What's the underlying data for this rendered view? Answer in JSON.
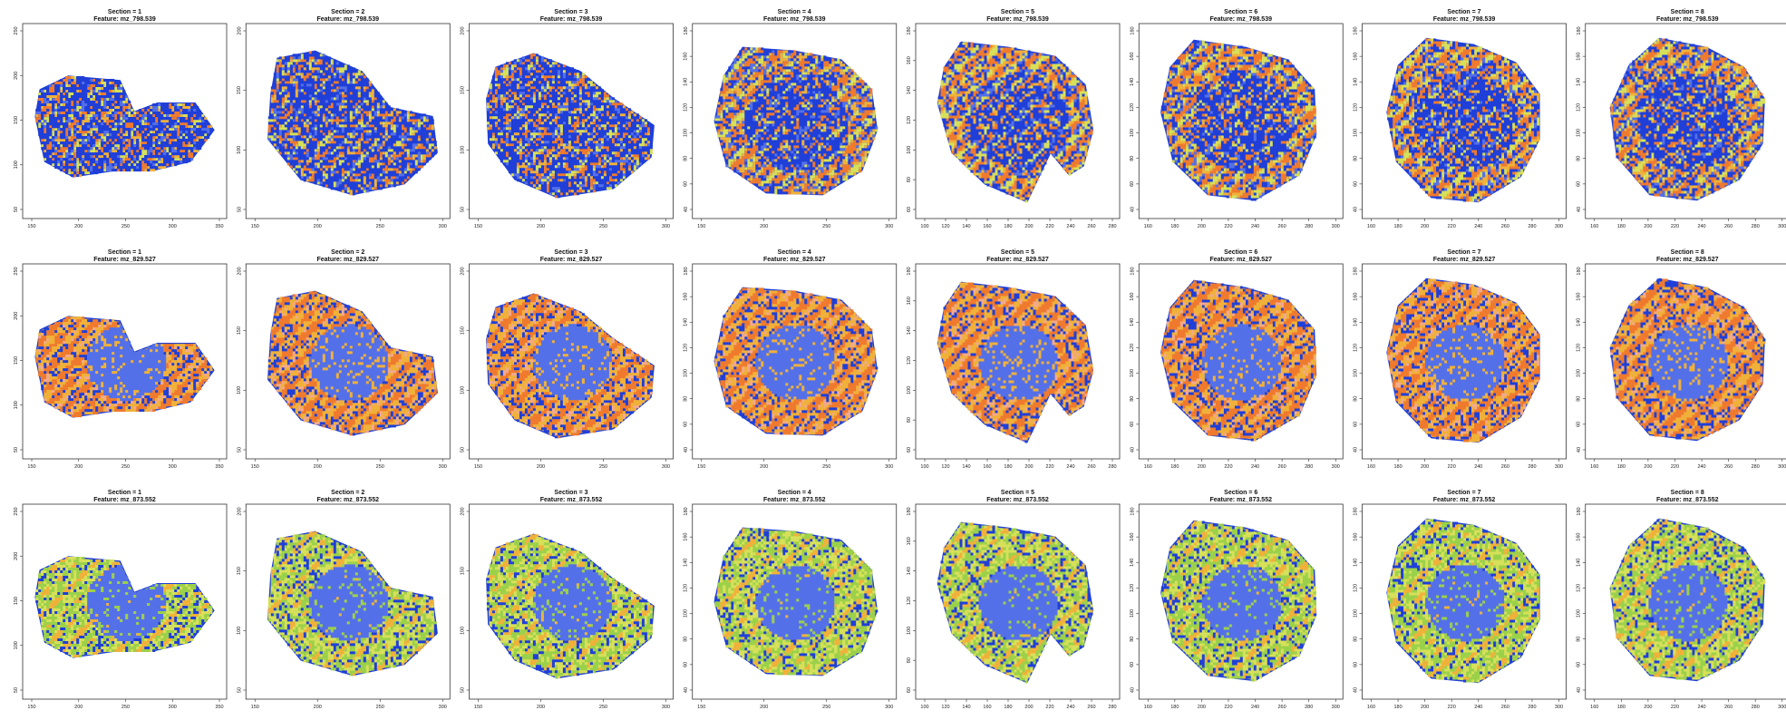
{
  "chart_data": {
    "type": "heatmap",
    "layout": {
      "rows": 3,
      "cols": 8
    },
    "colors": [
      "#1f3fd8",
      "#5470e8",
      "#9bd14a",
      "#d7e05a",
      "#f0b13a",
      "#ef7a2e",
      "#f2a98f"
    ],
    "features": [
      "mz_798.539",
      "mz_829.527",
      "mz_873.552"
    ],
    "sections": [
      {
        "label": "1",
        "xlim": [
          150,
          370
        ],
        "ylim": [
          90,
          330
        ],
        "xticks": [
          "150",
          "200",
          "250",
          "300",
          "350"
        ],
        "yticks": [
          "50",
          "100",
          "150",
          "200",
          "250"
        ],
        "shape": [
          [
            -0.95,
            0.05
          ],
          [
            -0.85,
            -0.45
          ],
          [
            -0.55,
            -0.62
          ],
          [
            -0.1,
            -0.55
          ],
          [
            0.3,
            -0.55
          ],
          [
            0.7,
            -0.45
          ],
          [
            0.95,
            -0.1
          ],
          [
            0.75,
            0.2
          ],
          [
            0.35,
            0.2
          ],
          [
            0.1,
            0.1
          ],
          [
            -0.05,
            0.45
          ],
          [
            -0.6,
            0.5
          ],
          [
            -0.9,
            0.35
          ]
        ]
      },
      {
        "label": "2",
        "xlim": [
          130,
          340
        ],
        "ylim": [
          40,
          260
        ],
        "xticks": [
          "150",
          "200",
          "250",
          "300"
        ],
        "yticks": [
          "50",
          "100",
          "150",
          "200"
        ],
        "shape": [
          [
            -0.75,
            0.7
          ],
          [
            -0.35,
            0.78
          ],
          [
            0.15,
            0.55
          ],
          [
            0.45,
            0.15
          ],
          [
            0.9,
            0.05
          ],
          [
            0.95,
            -0.35
          ],
          [
            0.6,
            -0.7
          ],
          [
            0.05,
            -0.82
          ],
          [
            -0.5,
            -0.65
          ],
          [
            -0.85,
            -0.2
          ],
          [
            -0.82,
            0.3
          ]
        ]
      },
      {
        "label": "3",
        "xlim": [
          140,
          330
        ],
        "ylim": [
          40,
          210
        ],
        "xticks": [
          "150",
          "200",
          "250",
          "300"
        ],
        "yticks": [
          "50",
          "100",
          "150",
          "200"
        ],
        "shape": [
          [
            -0.8,
            0.6
          ],
          [
            -0.4,
            0.75
          ],
          [
            0.1,
            0.55
          ],
          [
            0.45,
            0.25
          ],
          [
            0.88,
            -0.05
          ],
          [
            0.85,
            -0.4
          ],
          [
            0.45,
            -0.75
          ],
          [
            -0.15,
            -0.85
          ],
          [
            -0.6,
            -0.65
          ],
          [
            -0.88,
            -0.25
          ],
          [
            -0.9,
            0.25
          ]
        ]
      },
      {
        "label": "4",
        "xlim": [
          150,
          300
        ],
        "ylim": [
          40,
          180
        ],
        "xticks": [
          "150",
          "200",
          "250",
          "300"
        ],
        "yticks": [
          "40",
          "60",
          "80",
          "100",
          "120",
          "140",
          "160",
          "180"
        ],
        "shape": [
          [
            -0.55,
            0.82
          ],
          [
            0.0,
            0.78
          ],
          [
            0.5,
            0.68
          ],
          [
            0.82,
            0.35
          ],
          [
            0.88,
            -0.1
          ],
          [
            0.72,
            -0.55
          ],
          [
            0.3,
            -0.82
          ],
          [
            -0.3,
            -0.8
          ],
          [
            -0.72,
            -0.5
          ],
          [
            -0.85,
            0.0
          ],
          [
            -0.75,
            0.5
          ]
        ]
      },
      {
        "label": "5",
        "xlim": [
          90,
          290
        ],
        "ylim": [
          40,
          200
        ],
        "xticks": [
          "100",
          "120",
          "140",
          "160",
          "180",
          "200",
          "220",
          "240",
          "260",
          "280"
        ],
        "yticks": [
          "60",
          "80",
          "100",
          "120",
          "140",
          "160",
          "180"
        ],
        "shape": [
          [
            -0.6,
            0.88
          ],
          [
            -0.1,
            0.82
          ],
          [
            0.4,
            0.72
          ],
          [
            0.72,
            0.4
          ],
          [
            0.8,
            -0.1
          ],
          [
            0.7,
            -0.5
          ],
          [
            0.55,
            -0.6
          ],
          [
            0.35,
            -0.35
          ],
          [
            0.1,
            -0.9
          ],
          [
            -0.35,
            -0.7
          ],
          [
            -0.7,
            -0.35
          ],
          [
            -0.85,
            0.2
          ],
          [
            -0.78,
            0.6
          ]
        ]
      },
      {
        "label": "6",
        "xlim": [
          140,
          300
        ],
        "ylim": [
          40,
          200
        ],
        "xticks": [
          "160",
          "180",
          "200",
          "220",
          "240",
          "260",
          "280",
          "300"
        ],
        "yticks": [
          "40",
          "60",
          "80",
          "100",
          "120",
          "140",
          "160",
          "180"
        ],
        "shape": [
          [
            -0.5,
            0.9
          ],
          [
            0.05,
            0.82
          ],
          [
            0.5,
            0.68
          ],
          [
            0.78,
            0.35
          ],
          [
            0.8,
            -0.15
          ],
          [
            0.62,
            -0.6
          ],
          [
            0.15,
            -0.88
          ],
          [
            -0.35,
            -0.82
          ],
          [
            -0.72,
            -0.45
          ],
          [
            -0.85,
            0.1
          ],
          [
            -0.75,
            0.6
          ]
        ]
      },
      {
        "label": "7",
        "xlim": [
          140,
          300
        ],
        "ylim": [
          40,
          200
        ],
        "xticks": [
          "160",
          "180",
          "200",
          "220",
          "240",
          "260",
          "280",
          "300"
        ],
        "yticks": [
          "40",
          "60",
          "80",
          "100",
          "120",
          "140",
          "160",
          "180"
        ],
        "shape": [
          [
            -0.4,
            0.92
          ],
          [
            0.1,
            0.85
          ],
          [
            0.55,
            0.65
          ],
          [
            0.8,
            0.3
          ],
          [
            0.8,
            -0.2
          ],
          [
            0.6,
            -0.62
          ],
          [
            0.15,
            -0.9
          ],
          [
            -0.35,
            -0.85
          ],
          [
            -0.72,
            -0.45
          ],
          [
            -0.82,
            0.1
          ],
          [
            -0.7,
            0.62
          ]
        ]
      },
      {
        "label": "8",
        "xlim": [
          140,
          300
        ],
        "ylim": [
          40,
          200
        ],
        "xticks": [
          "160",
          "180",
          "200",
          "220",
          "240",
          "260",
          "280",
          "300"
        ],
        "yticks": [
          "40",
          "60",
          "80",
          "100",
          "120",
          "140",
          "160",
          "180"
        ],
        "shape": [
          [
            -0.3,
            0.92
          ],
          [
            0.2,
            0.82
          ],
          [
            0.6,
            0.6
          ],
          [
            0.82,
            0.25
          ],
          [
            0.8,
            -0.25
          ],
          [
            0.55,
            -0.65
          ],
          [
            0.1,
            -0.88
          ],
          [
            -0.4,
            -0.82
          ],
          [
            -0.75,
            -0.4
          ],
          [
            -0.82,
            0.15
          ],
          [
            -0.62,
            0.62
          ]
        ]
      }
    ],
    "panels": [
      {
        "title1": "Section = 1",
        "title2": "Feature: mz_798.539",
        "section": 0,
        "feature": 0
      },
      {
        "title1": "Section = 2",
        "title2": "Feature: mz_798.539",
        "section": 1,
        "feature": 0
      },
      {
        "title1": "Section = 3",
        "title2": "Feature: mz_798.539",
        "section": 2,
        "feature": 0
      },
      {
        "title1": "Section = 4",
        "title2": "Feature: mz_798.539",
        "section": 3,
        "feature": 0
      },
      {
        "title1": "Section = 5",
        "title2": "Feature: mz_798.539",
        "section": 4,
        "feature": 0
      },
      {
        "title1": "Section = 6",
        "title2": "Feature: mz_798.539",
        "section": 5,
        "feature": 0
      },
      {
        "title1": "Section = 7",
        "title2": "Feature: mz_798.539",
        "section": 6,
        "feature": 0
      },
      {
        "title1": "Section = 8",
        "title2": "Feature: mz_798.539",
        "section": 7,
        "feature": 0
      },
      {
        "title1": "Section = 1",
        "title2": "Feature: mz_829.527",
        "section": 0,
        "feature": 1
      },
      {
        "title1": "Section = 2",
        "title2": "Feature: mz_829.527",
        "section": 1,
        "feature": 1
      },
      {
        "title1": "Section = 3",
        "title2": "Feature: mz_829.527",
        "section": 2,
        "feature": 1
      },
      {
        "title1": "Section = 4",
        "title2": "Feature: mz_829.527",
        "section": 3,
        "feature": 1
      },
      {
        "title1": "Section = 5",
        "title2": "Feature: mz_829.527",
        "section": 4,
        "feature": 1
      },
      {
        "title1": "Section = 6",
        "title2": "Feature: mz_829.527",
        "section": 5,
        "feature": 1
      },
      {
        "title1": "Section = 7",
        "title2": "Feature: mz_829.527",
        "section": 6,
        "feature": 1
      },
      {
        "title1": "Section = 8",
        "title2": "Feature: mz_829.527",
        "section": 7,
        "feature": 1
      },
      {
        "title1": "Section = 1",
        "title2": "Feature: mz_873.552",
        "section": 0,
        "feature": 2
      },
      {
        "title1": "Section = 2",
        "title2": "Feature: mz_873.552",
        "section": 1,
        "feature": 2
      },
      {
        "title1": "Section = 3",
        "title2": "Feature: mz_873.552",
        "section": 2,
        "feature": 2
      },
      {
        "title1": "Section = 4",
        "title2": "Feature: mz_873.552",
        "section": 3,
        "feature": 2
      },
      {
        "title1": "Section = 5",
        "title2": "Feature: mz_873.552",
        "section": 4,
        "feature": 2
      },
      {
        "title1": "Section = 6",
        "title2": "Feature: mz_873.552",
        "section": 5,
        "feature": 2
      },
      {
        "title1": "Section = 7",
        "title2": "Feature: mz_873.552",
        "section": 6,
        "feature": 2
      },
      {
        "title1": "Section = 8",
        "title2": "Feature: mz_873.552",
        "section": 7,
        "feature": 2
      }
    ]
  }
}
